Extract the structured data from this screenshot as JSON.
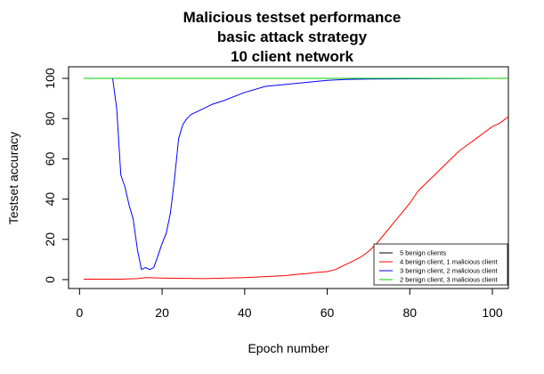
{
  "chart_data": {
    "type": "line",
    "title_lines": [
      "Malicious testset performance",
      "basic attack strategy",
      "10 client network"
    ],
    "xlabel": "Epoch number",
    "ylabel": "Testset accuracy",
    "xlim": [
      1,
      104
    ],
    "ylim": [
      0,
      100
    ],
    "xticks": [
      0,
      20,
      40,
      60,
      80,
      100
    ],
    "yticks": [
      0,
      20,
      40,
      60,
      80,
      100
    ],
    "grid": false,
    "legend_position": "bottom-right",
    "series": [
      {
        "name": "5 benign clients",
        "color": "#000000",
        "x": [
          1,
          104
        ],
        "y": [
          100,
          100
        ]
      },
      {
        "name": "4 benign client, 1 malicious client",
        "color": "#ff0000",
        "x": [
          1,
          10,
          14,
          16,
          20,
          30,
          40,
          45,
          50,
          52,
          55,
          57,
          60,
          62,
          64,
          66,
          68,
          70,
          72,
          74,
          76,
          78,
          80,
          82,
          84,
          86,
          88,
          90,
          92,
          94,
          96,
          98,
          100,
          102,
          104
        ],
        "y": [
          0.2,
          0.2,
          0.5,
          1,
          0.8,
          0.5,
          1,
          1.5,
          2,
          2.5,
          3,
          3.5,
          4,
          5,
          7,
          9,
          11,
          14,
          18,
          23,
          28,
          33,
          38,
          44,
          48,
          52,
          56,
          60,
          64,
          67,
          70,
          73,
          76,
          78,
          81
        ]
      },
      {
        "name": "3 benign client, 2 malicious client",
        "color": "#0000ff",
        "x": [
          1,
          6,
          8,
          9,
          10,
          11,
          12,
          13,
          14,
          15,
          16,
          17,
          18,
          19,
          20,
          21,
          22,
          23,
          24,
          25,
          26,
          27,
          28,
          30,
          32,
          35,
          40,
          45,
          50,
          55,
          60,
          65,
          70,
          80,
          90,
          100,
          104
        ],
        "y": [
          100,
          100,
          100,
          85,
          52,
          46,
          37,
          30,
          15,
          5,
          6,
          5,
          6,
          12,
          18,
          23,
          33,
          50,
          70,
          77,
          80,
          82,
          83,
          85,
          87,
          89,
          93,
          96,
          97,
          98,
          99,
          99.5,
          99.7,
          99.8,
          99.9,
          100,
          100
        ]
      },
      {
        "name": "2 benign client, 3 malicious client",
        "color": "#00cc00",
        "x": [
          1,
          104
        ],
        "y": [
          100,
          100
        ]
      }
    ]
  }
}
